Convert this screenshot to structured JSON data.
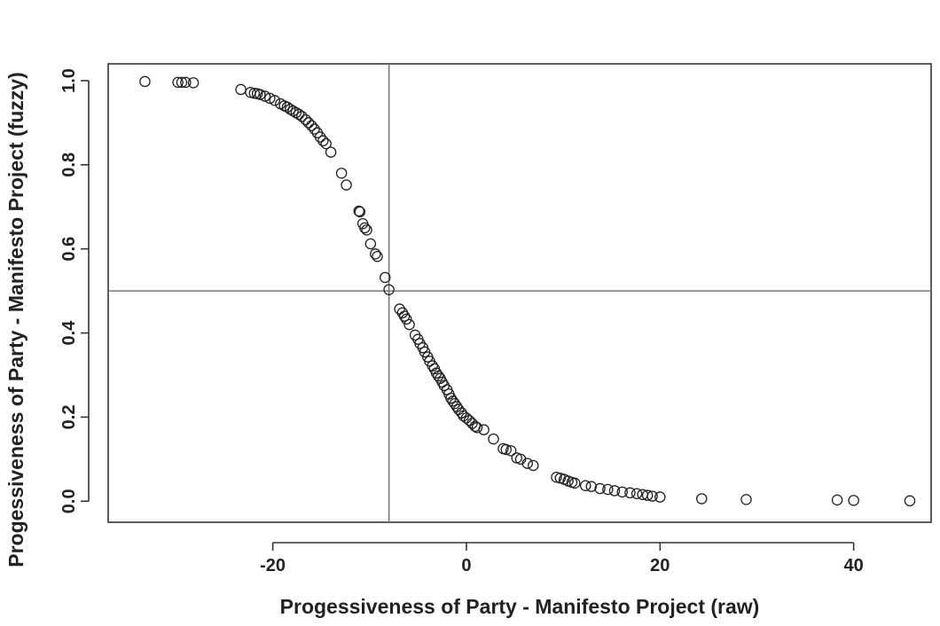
{
  "chart_data": {
    "type": "scatter",
    "xlabel": "Progessiveness of Party - Manifesto Project (raw)",
    "ylabel": "Progessiveness of Party - Manifesto Project (fuzzy)",
    "xlim": [
      -37,
      48
    ],
    "ylim": [
      -0.05,
      1.04
    ],
    "xticks": [
      -20,
      0,
      20,
      40
    ],
    "yticks": [
      0.0,
      0.2,
      0.4,
      0.6,
      0.8,
      1.0
    ],
    "ytick_labels": [
      "0.0",
      "0.2",
      "0.4",
      "0.6",
      "0.8",
      "1.0"
    ],
    "reference_lines": {
      "vertical_x": -8,
      "horizontal_y": 0.5
    },
    "grid": false,
    "legend": "none",
    "marker": "open-circle",
    "points": [
      [
        -33.2,
        0.998
      ],
      [
        -29.8,
        0.996
      ],
      [
        -29.4,
        0.996
      ],
      [
        -29.0,
        0.996
      ],
      [
        -28.2,
        0.995
      ],
      [
        -23.3,
        0.979
      ],
      [
        -22.3,
        0.972
      ],
      [
        -21.9,
        0.97
      ],
      [
        -21.6,
        0.969
      ],
      [
        -21.3,
        0.967
      ],
      [
        -20.8,
        0.963
      ],
      [
        -20.3,
        0.958
      ],
      [
        -19.8,
        0.953
      ],
      [
        -19.2,
        0.945
      ],
      [
        -18.8,
        0.94
      ],
      [
        -18.5,
        0.937
      ],
      [
        -18.2,
        0.932
      ],
      [
        -17.9,
        0.928
      ],
      [
        -17.6,
        0.924
      ],
      [
        -17.3,
        0.92
      ],
      [
        -17.0,
        0.915
      ],
      [
        -16.6,
        0.907
      ],
      [
        -16.3,
        0.9
      ],
      [
        -16.0,
        0.893
      ],
      [
        -15.7,
        0.885
      ],
      [
        -15.4,
        0.876
      ],
      [
        -15.1,
        0.866
      ],
      [
        -14.8,
        0.857
      ],
      [
        -14.5,
        0.85
      ],
      [
        -14.0,
        0.83
      ],
      [
        -12.9,
        0.78
      ],
      [
        -12.4,
        0.752
      ],
      [
        -11.1,
        0.69
      ],
      [
        -11.0,
        0.688
      ],
      [
        -10.7,
        0.66
      ],
      [
        -10.5,
        0.65
      ],
      [
        -10.3,
        0.645
      ],
      [
        -9.9,
        0.612
      ],
      [
        -9.4,
        0.588
      ],
      [
        -9.2,
        0.582
      ],
      [
        -8.4,
        0.532
      ],
      [
        -8.0,
        0.503
      ],
      [
        -6.9,
        0.457
      ],
      [
        -6.6,
        0.448
      ],
      [
        -6.4,
        0.44
      ],
      [
        -6.2,
        0.433
      ],
      [
        -5.9,
        0.42
      ],
      [
        -5.3,
        0.395
      ],
      [
        -5.0,
        0.385
      ],
      [
        -4.8,
        0.375
      ],
      [
        -4.5,
        0.365
      ],
      [
        -4.3,
        0.355
      ],
      [
        -4.0,
        0.343
      ],
      [
        -3.8,
        0.333
      ],
      [
        -3.5,
        0.322
      ],
      [
        -3.3,
        0.315
      ],
      [
        -3.1,
        0.305
      ],
      [
        -2.9,
        0.298
      ],
      [
        -2.7,
        0.292
      ],
      [
        -2.5,
        0.283
      ],
      [
        -2.3,
        0.275
      ],
      [
        -2.0,
        0.265
      ],
      [
        -1.8,
        0.255
      ],
      [
        -1.6,
        0.245
      ],
      [
        -1.4,
        0.238
      ],
      [
        -1.2,
        0.232
      ],
      [
        -1.0,
        0.225
      ],
      [
        -0.8,
        0.218
      ],
      [
        -0.5,
        0.21
      ],
      [
        -0.3,
        0.203
      ],
      [
        0.0,
        0.198
      ],
      [
        0.3,
        0.192
      ],
      [
        0.6,
        0.185
      ],
      [
        0.9,
        0.178
      ],
      [
        1.1,
        0.175
      ],
      [
        1.8,
        0.17
      ],
      [
        2.8,
        0.148
      ],
      [
        3.8,
        0.125
      ],
      [
        4.1,
        0.123
      ],
      [
        4.6,
        0.12
      ],
      [
        5.2,
        0.103
      ],
      [
        5.6,
        0.1
      ],
      [
        6.3,
        0.09
      ],
      [
        6.9,
        0.085
      ],
      [
        9.3,
        0.057
      ],
      [
        9.7,
        0.055
      ],
      [
        10.1,
        0.052
      ],
      [
        10.5,
        0.048
      ],
      [
        10.9,
        0.045
      ],
      [
        11.2,
        0.043
      ],
      [
        12.3,
        0.037
      ],
      [
        12.9,
        0.035
      ],
      [
        13.8,
        0.03
      ],
      [
        14.6,
        0.028
      ],
      [
        15.3,
        0.025
      ],
      [
        16.1,
        0.022
      ],
      [
        16.9,
        0.02
      ],
      [
        17.6,
        0.018
      ],
      [
        18.2,
        0.016
      ],
      [
        18.7,
        0.014
      ],
      [
        19.2,
        0.012
      ],
      [
        20.0,
        0.01
      ],
      [
        24.3,
        0.006
      ],
      [
        28.9,
        0.004
      ],
      [
        38.3,
        0.003
      ],
      [
        40.0,
        0.002
      ],
      [
        45.8,
        0.001
      ]
    ]
  }
}
